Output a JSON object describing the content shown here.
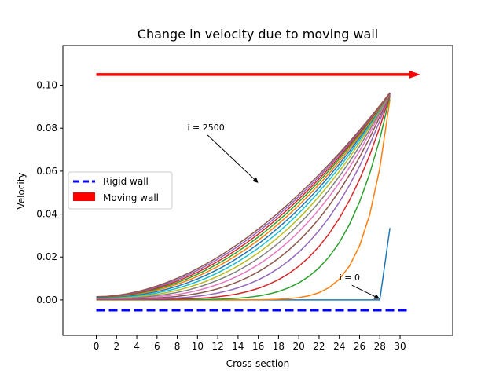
{
  "chart_data": {
    "type": "line",
    "title": "Change in velocity due to moving wall",
    "xlabel": "Cross-section",
    "ylabel": "Velocity",
    "xlim": [
      -3.3,
      35.2
    ],
    "ylim": [
      -0.0165,
      0.1185
    ],
    "x_ticks": [
      0,
      2,
      4,
      6,
      8,
      10,
      12,
      14,
      16,
      18,
      20,
      22,
      24,
      26,
      28,
      30
    ],
    "y_ticks": [
      0.0,
      0.02,
      0.04,
      0.06,
      0.08,
      0.1
    ],
    "y_tick_labels": [
      "0.00",
      "0.02",
      "0.04",
      "0.06",
      "0.08",
      "0.10"
    ],
    "grid": false,
    "legend": {
      "location": "center-left",
      "entries": [
        {
          "label": "Rigid wall",
          "color": "#0000ff",
          "style": "dashed"
        },
        {
          "label": "Moving wall",
          "color": "#ff0000",
          "style": "patch"
        }
      ]
    },
    "walls": {
      "rigid": {
        "label": "Rigid wall",
        "color": "#0000ff",
        "x": [
          0,
          31
        ],
        "y": -0.0048
      },
      "moving": {
        "label": "Moving wall",
        "color": "#ff0000",
        "x": [
          0,
          32
        ],
        "y": 0.105
      }
    },
    "profiles": {
      "x_max": 29,
      "final_value": 0.098,
      "series": [
        {
          "iteration_index": 0,
          "color": "#1f77b4",
          "first_step": {
            "x": [
              28,
              29
            ],
            "y": [
              0.0,
              0.0335
            ]
          }
        },
        {
          "iteration_index": 1,
          "color": "#ff7f0e",
          "endpoint_value": 0.0935
        },
        {
          "iteration_index": 2,
          "color": "#2ca02c",
          "endpoint_value": 0.095
        },
        {
          "iteration_index": 3,
          "color": "#d62728",
          "endpoint_value": 0.0958
        },
        {
          "iteration_index": 4,
          "color": "#9467bd",
          "endpoint_value": 0.0963
        },
        {
          "iteration_index": 5,
          "color": "#8c564b",
          "endpoint_value": 0.0967
        },
        {
          "iteration_index": 6,
          "color": "#e377c2",
          "endpoint_value": 0.097
        },
        {
          "iteration_index": 7,
          "color": "#7f7f7f",
          "endpoint_value": 0.0972
        },
        {
          "iteration_index": 8,
          "color": "#bcbd22",
          "endpoint_value": 0.0974
        },
        {
          "iteration_index": 9,
          "color": "#17becf",
          "endpoint_value": 0.0975
        },
        {
          "iteration_index": 10,
          "color": "#1f77b4",
          "endpoint_value": 0.0976
        },
        {
          "iteration_index": 11,
          "color": "#ff7f0e",
          "endpoint_value": 0.0977
        },
        {
          "iteration_index": 12,
          "color": "#2ca02c",
          "endpoint_value": 0.0978
        },
        {
          "iteration_index": 13,
          "color": "#d62728",
          "endpoint_value": 0.0978
        },
        {
          "iteration_index": 14,
          "color": "#9467bd",
          "endpoint_value": 0.0979
        },
        {
          "iteration_index": 15,
          "color": "#8c564b",
          "endpoint_value": 0.098
        }
      ]
    },
    "annotations": [
      {
        "text": "i = 2500",
        "xy": [
          16,
          0.0545
        ],
        "text_xy": [
          9,
          0.0805
        ]
      },
      {
        "text": "i = 0",
        "xy": [
          28,
          0.0005
        ],
        "text_xy": [
          24,
          0.0105
        ]
      }
    ]
  }
}
